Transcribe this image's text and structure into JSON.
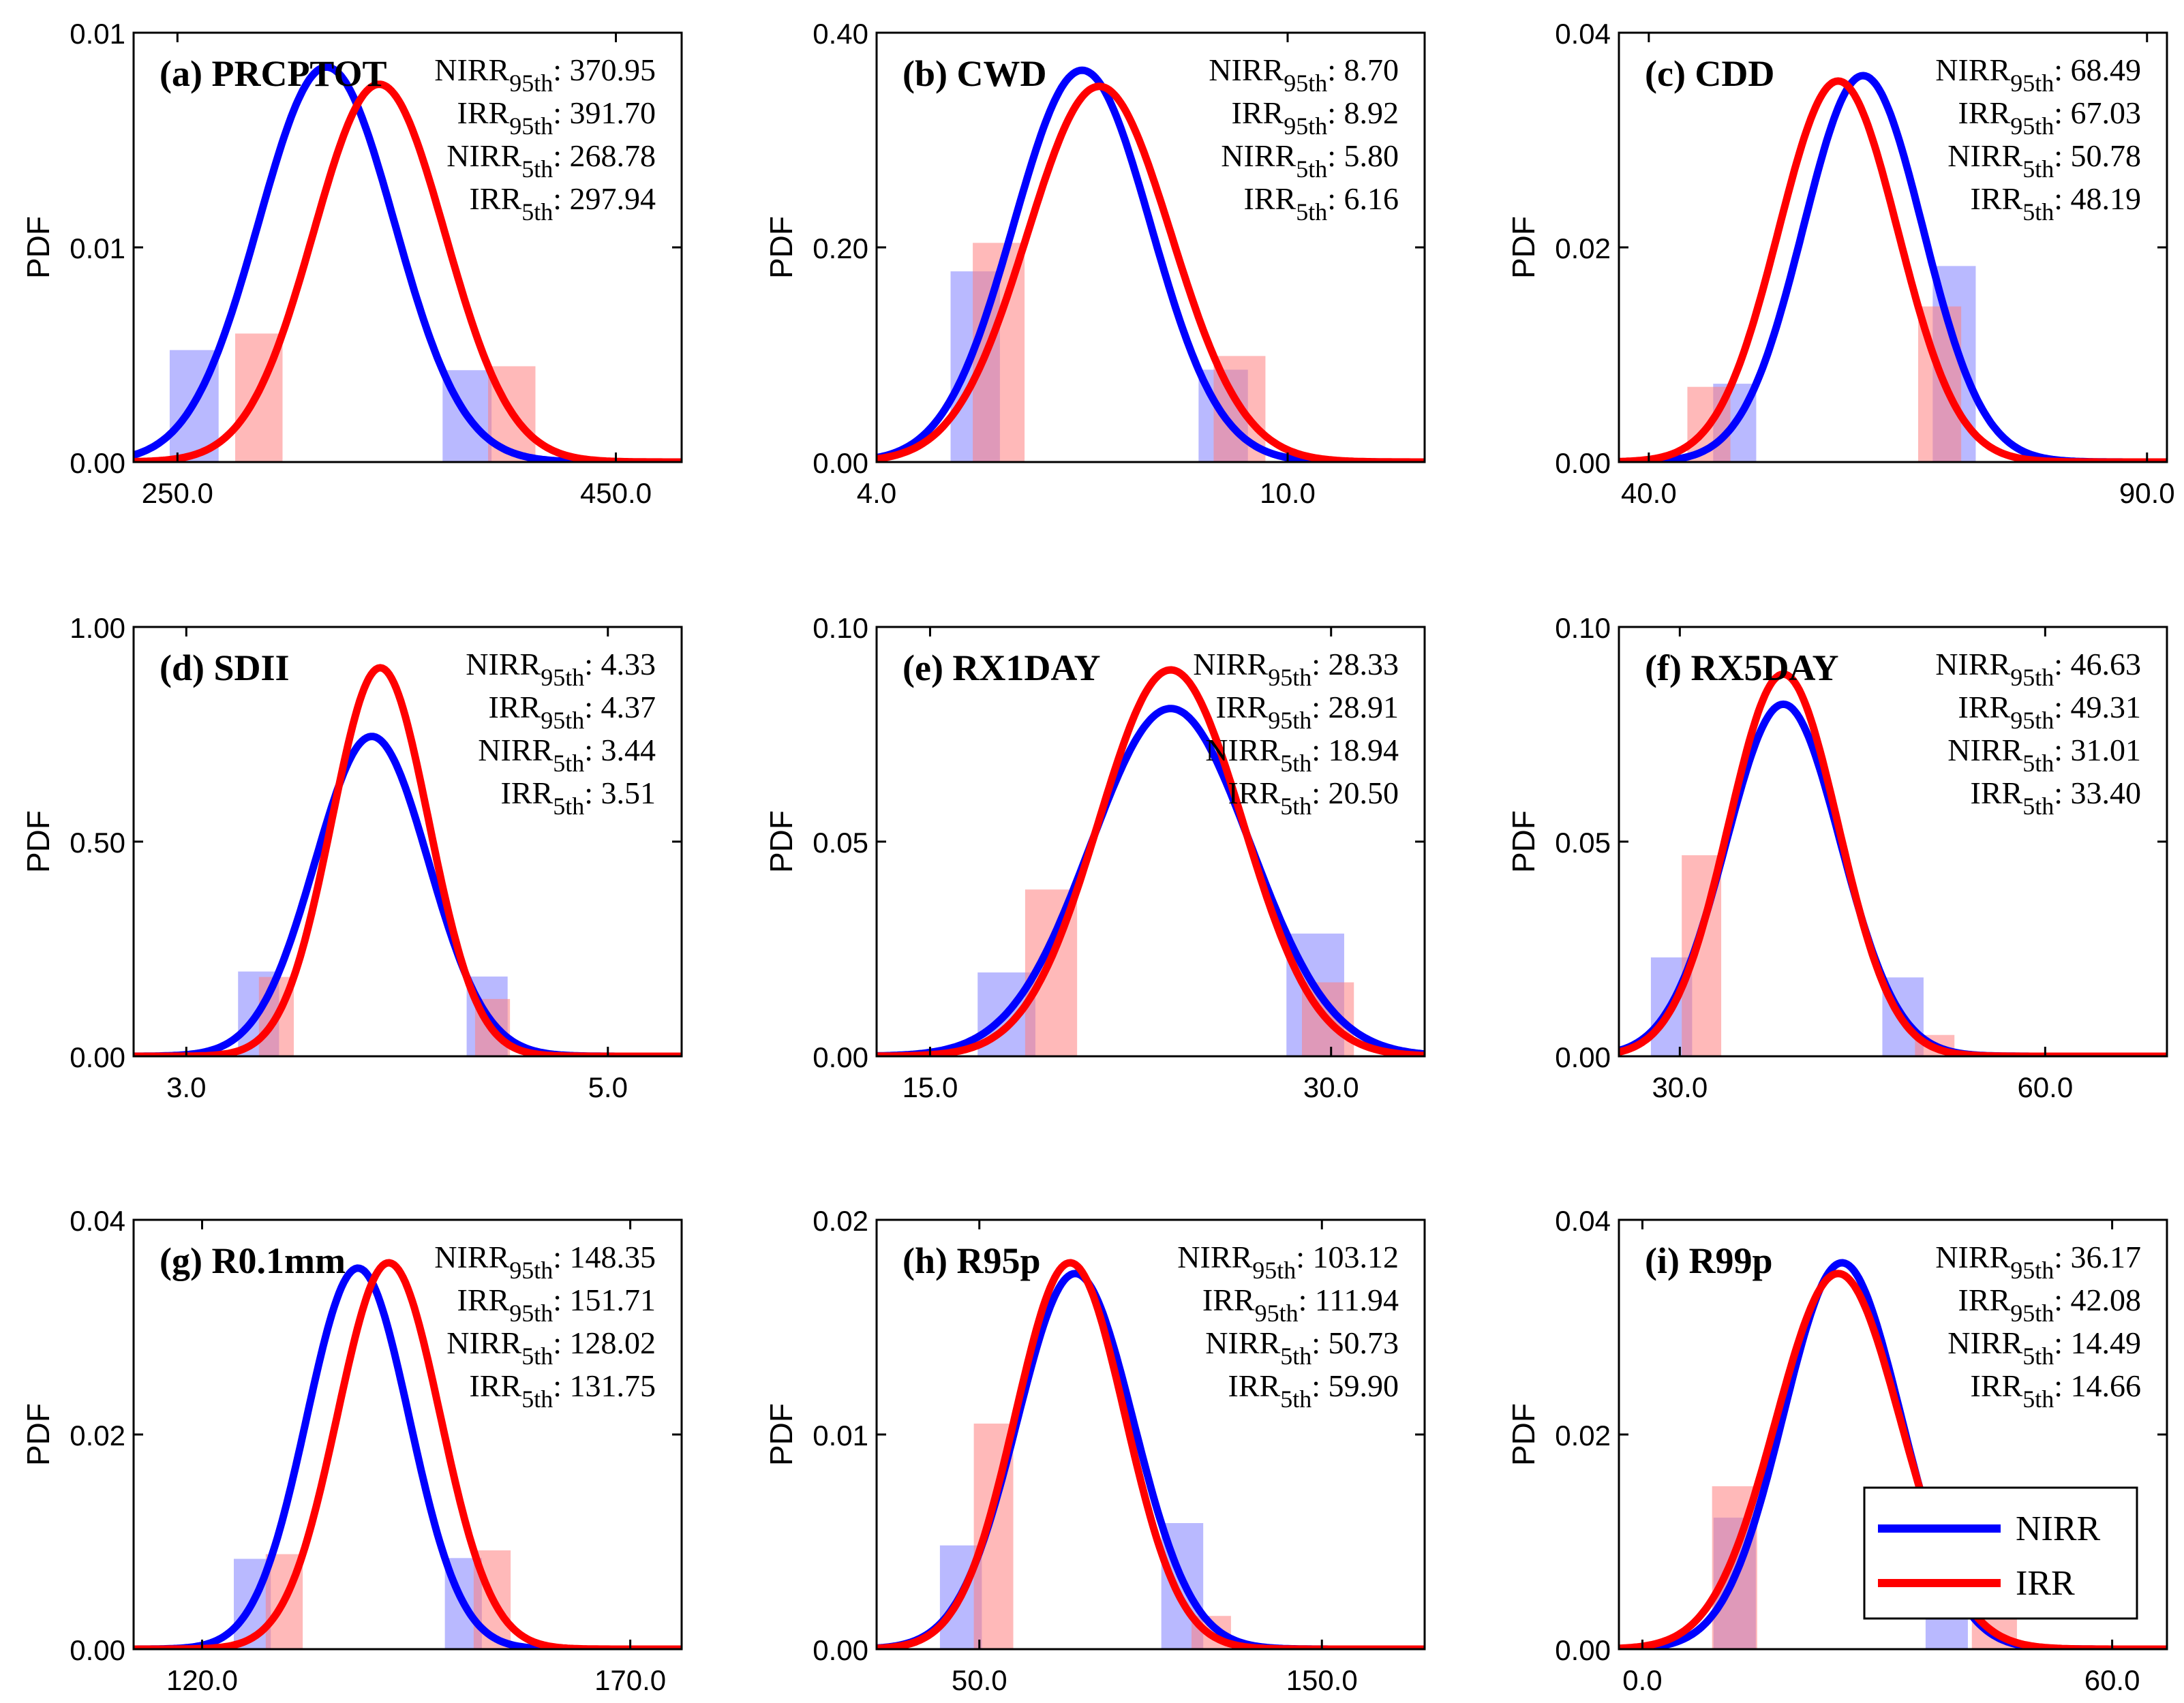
{
  "legend": {
    "entries": [
      {
        "label": "NIRR",
        "color": "#0000ff"
      },
      {
        "label": "IRR",
        "color": "#ff0000"
      }
    ]
  },
  "colors": {
    "nirr": "#0000ff",
    "irr": "#ff0000",
    "nirr_fill": "#8080ff",
    "irr_fill": "#ff8080"
  },
  "chart_data": [
    {
      "type": "line",
      "id": "a",
      "title": "(a) PRCPTOT",
      "ylabel": "PDF",
      "xlim": [
        230,
        480
      ],
      "ylim": [
        0,
        0.01
      ],
      "yticks": [
        0,
        0.005,
        0.01
      ],
      "ytick_labels": [
        "0.00",
        "0.01",
        "0.01"
      ],
      "xticks": [
        250,
        450
      ],
      "xtick_labels": [
        "250.0",
        "450.0"
      ],
      "stats": [
        {
          "base": "NIRR",
          "sub": "95th",
          "value": ": 370.95"
        },
        {
          "base": "IRR",
          "sub": "95th",
          "value": ": 391.70"
        },
        {
          "base": "NIRR",
          "sub": "5th",
          "value": ": 268.78"
        },
        {
          "base": "IRR",
          "sub": "5th",
          "value": ": 297.94"
        }
      ],
      "series": [
        {
          "name": "NIRR",
          "mean": 318,
          "sd": 31,
          "peak": 0.0092,
          "p5": 268.78,
          "p95": 370.95
        },
        {
          "name": "IRR",
          "mean": 342,
          "sd": 30,
          "peak": 0.0088,
          "p5": 297.94,
          "p95": 391.7
        }
      ]
    },
    {
      "type": "line",
      "id": "b",
      "title": "(b) CWD",
      "ylabel": "PDF",
      "xlim": [
        4,
        12
      ],
      "ylim": [
        0,
        0.4
      ],
      "yticks": [
        0,
        0.2,
        0.4
      ],
      "ytick_labels": [
        "0.00",
        "0.20",
        "0.40"
      ],
      "xticks": [
        4,
        10
      ],
      "xtick_labels": [
        "4.0",
        "10.0"
      ],
      "stats": [
        {
          "base": "NIRR",
          "sub": "95th",
          "value": ": 8.70"
        },
        {
          "base": "IRR",
          "sub": "95th",
          "value": ": 8.92"
        },
        {
          "base": "NIRR",
          "sub": "5th",
          "value": ": 5.80"
        },
        {
          "base": "IRR",
          "sub": "5th",
          "value": ": 6.16"
        }
      ],
      "series": [
        {
          "name": "NIRR",
          "mean": 7.0,
          "sd": 1.0,
          "peak": 0.365,
          "p5": 5.8,
          "p95": 8.7
        },
        {
          "name": "IRR",
          "mean": 7.25,
          "sd": 1.05,
          "peak": 0.35,
          "p5": 6.16,
          "p95": 8.92
        }
      ]
    },
    {
      "type": "line",
      "id": "c",
      "title": "(c) CDD",
      "ylabel": "PDF",
      "xlim": [
        37,
        92
      ],
      "ylim": [
        0,
        0.04
      ],
      "yticks": [
        0,
        0.02,
        0.04
      ],
      "ytick_labels": [
        "0.00",
        "0.02",
        "0.04"
      ],
      "xticks": [
        40,
        90
      ],
      "xtick_labels": [
        "40.0",
        "90.0"
      ],
      "stats": [
        {
          "base": "NIRR",
          "sub": "95th",
          "value": ": 68.49"
        },
        {
          "base": "IRR",
          "sub": "95th",
          "value": ": 67.03"
        },
        {
          "base": "NIRR",
          "sub": "5th",
          "value": ": 50.78"
        },
        {
          "base": "IRR",
          "sub": "5th",
          "value": ": 48.19"
        }
      ],
      "series": [
        {
          "name": "NIRR",
          "mean": 61.5,
          "sd": 6.0,
          "peak": 0.036,
          "p5": 50.78,
          "p95": 68.49
        },
        {
          "name": "IRR",
          "mean": 59.0,
          "sd": 6.0,
          "peak": 0.0355,
          "p5": 48.19,
          "p95": 67.03
        }
      ]
    },
    {
      "type": "line",
      "id": "d",
      "title": "(d) SDII",
      "ylabel": "PDF",
      "xlim": [
        2.75,
        5.35
      ],
      "ylim": [
        0,
        1.0
      ],
      "yticks": [
        0,
        0.5,
        1.0
      ],
      "ytick_labels": [
        "0.00",
        "0.50",
        "1.00"
      ],
      "xticks": [
        3,
        5
      ],
      "xtick_labels": [
        "3.0",
        "5.0"
      ],
      "stats": [
        {
          "base": "NIRR",
          "sub": "95th",
          "value": ": 4.33"
        },
        {
          "base": "IRR",
          "sub": "95th",
          "value": ": 4.37"
        },
        {
          "base": "NIRR",
          "sub": "5th",
          "value": ": 3.44"
        },
        {
          "base": "IRR",
          "sub": "5th",
          "value": ": 3.51"
        }
      ],
      "series": [
        {
          "name": "NIRR",
          "mean": 3.88,
          "sd": 0.27,
          "peak": 0.745,
          "p5": 3.44,
          "p95": 4.33
        },
        {
          "name": "IRR",
          "mean": 3.92,
          "sd": 0.23,
          "peak": 0.905,
          "p5": 3.51,
          "p95": 4.37
        }
      ]
    },
    {
      "type": "line",
      "id": "e",
      "title": "(e) RX1DAY",
      "ylabel": "PDF",
      "xlim": [
        13,
        33.5
      ],
      "ylim": [
        0,
        0.1
      ],
      "yticks": [
        0,
        0.05,
        0.1
      ],
      "ytick_labels": [
        "0.00",
        "0.05",
        "0.10"
      ],
      "xticks": [
        15,
        30
      ],
      "xtick_labels": [
        "15.0",
        "30.0"
      ],
      "stats": [
        {
          "base": "NIRR",
          "sub": "95th",
          "value": ": 28.33"
        },
        {
          "base": "IRR",
          "sub": "95th",
          "value": ": 28.91"
        },
        {
          "base": "NIRR",
          "sub": "5th",
          "value": ": 18.94"
        },
        {
          "base": "IRR",
          "sub": "5th",
          "value": ": 20.50"
        }
      ],
      "series": [
        {
          "name": "NIRR",
          "mean": 24.0,
          "sd": 3.0,
          "peak": 0.081,
          "p5": 18.94,
          "p95": 28.33
        },
        {
          "name": "IRR",
          "mean": 24.0,
          "sd": 2.7,
          "peak": 0.09,
          "p5": 20.5,
          "p95": 28.91
        }
      ]
    },
    {
      "type": "line",
      "id": "f",
      "title": "(f) RX5DAY",
      "ylabel": "PDF",
      "xlim": [
        25,
        70
      ],
      "ylim": [
        0,
        0.1
      ],
      "yticks": [
        0,
        0.05,
        0.1
      ],
      "ytick_labels": [
        "0.00",
        "0.05",
        "0.10"
      ],
      "xticks": [
        30,
        60
      ],
      "xtick_labels": [
        "30.0",
        "60.0"
      ],
      "stats": [
        {
          "base": "NIRR",
          "sub": "95th",
          "value": ": 46.63"
        },
        {
          "base": "IRR",
          "sub": "95th",
          "value": ": 49.31"
        },
        {
          "base": "NIRR",
          "sub": "5th",
          "value": ": 31.01"
        },
        {
          "base": "IRR",
          "sub": "5th",
          "value": ": 33.40"
        }
      ],
      "series": [
        {
          "name": "NIRR",
          "mean": 38.5,
          "sd": 4.7,
          "peak": 0.082,
          "p5": 31.01,
          "p95": 46.63
        },
        {
          "name": "IRR",
          "mean": 38.5,
          "sd": 4.5,
          "peak": 0.089,
          "p5": 33.4,
          "p95": 49.31
        }
      ]
    },
    {
      "type": "line",
      "id": "g",
      "title": "(g) R0.1mm",
      "ylabel": "PDF",
      "xlim": [
        112,
        176
      ],
      "ylim": [
        0,
        0.04
      ],
      "yticks": [
        0,
        0.02,
        0.04
      ],
      "ytick_labels": [
        "0.00",
        "0.02",
        "0.04"
      ],
      "xticks": [
        120,
        170
      ],
      "xtick_labels": [
        "120.0",
        "170.0"
      ],
      "stats": [
        {
          "base": "NIRR",
          "sub": "95th",
          "value": ": 148.35"
        },
        {
          "base": "IRR",
          "sub": "95th",
          "value": ": 151.71"
        },
        {
          "base": "NIRR",
          "sub": "5th",
          "value": ": 128.02"
        },
        {
          "base": "IRR",
          "sub": "5th",
          "value": ": 131.75"
        }
      ],
      "series": [
        {
          "name": "NIRR",
          "mean": 138.2,
          "sd": 6.0,
          "peak": 0.0355,
          "p5": 128.02,
          "p95": 148.35
        },
        {
          "name": "IRR",
          "mean": 141.8,
          "sd": 6.0,
          "peak": 0.036,
          "p5": 131.75,
          "p95": 151.71
        }
      ]
    },
    {
      "type": "line",
      "id": "h",
      "title": "(h) R95p",
      "ylabel": "PDF",
      "xlim": [
        20,
        180
      ],
      "ylim": [
        0,
        0.02
      ],
      "yticks": [
        0,
        0.01,
        0.02
      ],
      "ytick_labels": [
        "0.00",
        "0.01",
        "0.02"
      ],
      "xticks": [
        50,
        150
      ],
      "xtick_labels": [
        "50.0",
        "150.0"
      ],
      "stats": [
        {
          "base": "NIRR",
          "sub": "95th",
          "value": ": 103.12"
        },
        {
          "base": "IRR",
          "sub": "95th",
          "value": ": 111.94"
        },
        {
          "base": "NIRR",
          "sub": "5th",
          "value": ": 50.73"
        },
        {
          "base": "IRR",
          "sub": "5th",
          "value": ": 59.90"
        }
      ],
      "series": [
        {
          "name": "NIRR",
          "mean": 78.0,
          "sd": 17.0,
          "peak": 0.0175,
          "p5": 50.73,
          "p95": 103.12
        },
        {
          "name": "IRR",
          "mean": 76.5,
          "sd": 16.0,
          "peak": 0.018,
          "p5": 59.9,
          "p95": 111.94
        }
      ]
    },
    {
      "type": "line",
      "id": "i",
      "title": "(i) R99p",
      "ylabel": "PDF",
      "xlim": [
        -3,
        67
      ],
      "ylim": [
        0,
        0.04
      ],
      "yticks": [
        0,
        0.02,
        0.04
      ],
      "ytick_labels": [
        "0.00",
        "0.02",
        "0.04"
      ],
      "xticks": [
        0,
        60
      ],
      "xtick_labels": [
        "0.0",
        "60.0"
      ],
      "stats": [
        {
          "base": "NIRR",
          "sub": "95th",
          "value": ": 36.17"
        },
        {
          "base": "IRR",
          "sub": "95th",
          "value": ": 42.08"
        },
        {
          "base": "NIRR",
          "sub": "5th",
          "value": ": 14.49"
        },
        {
          "base": "IRR",
          "sub": "5th",
          "value": ": 14.66"
        }
      ],
      "series": [
        {
          "name": "NIRR",
          "mean": 25.5,
          "sd": 7.5,
          "peak": 0.036,
          "p5": 14.49,
          "p95": 36.17
        },
        {
          "name": "IRR",
          "mean": 25.0,
          "sd": 8.0,
          "peak": 0.035,
          "p5": 14.66,
          "p95": 42.08
        }
      ]
    }
  ]
}
